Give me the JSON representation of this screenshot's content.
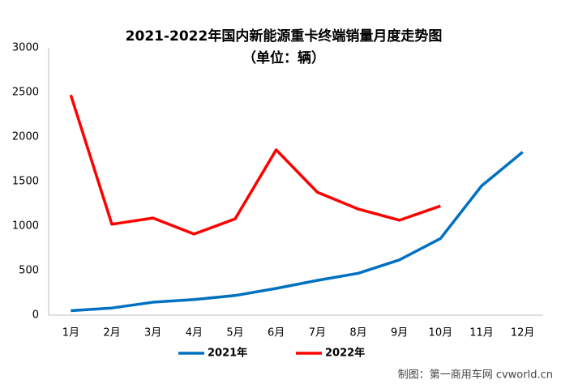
{
  "chart_data": {
    "type": "line",
    "title": "2021-2022年国内新能源重卡终端销量月度走势图",
    "subtitle": "（单位：辆）",
    "categories": [
      "1月",
      "2月",
      "3月",
      "4月",
      "5月",
      "6月",
      "7月",
      "8月",
      "9月",
      "10月",
      "11月",
      "12月"
    ],
    "series": [
      {
        "name": "2021年",
        "color": "#0070c0",
        "values": [
          50,
          80,
          145,
          175,
          220,
          300,
          390,
          470,
          620,
          860,
          1450,
          1830
        ]
      },
      {
        "name": "2022年",
        "color": "#ff0000",
        "values": [
          2470,
          1020,
          1090,
          910,
          1080,
          1855,
          1380,
          1190,
          1065,
          1225,
          null,
          null
        ]
      }
    ],
    "ylim": [
      0,
      3000
    ],
    "yticks": [
      0,
      500,
      1000,
      1500,
      2000,
      2500,
      3000
    ],
    "grid": false,
    "legend": "bottom",
    "source": "制图：第一商用车网 cvworld.cn"
  }
}
